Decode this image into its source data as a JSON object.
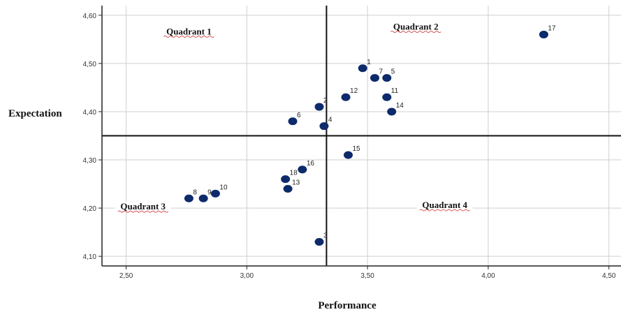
{
  "chart_data": {
    "type": "scatter",
    "title": "",
    "xlabel": "Performance",
    "ylabel": "Expectation",
    "xlim": [
      2.4,
      4.55
    ],
    "ylim": [
      4.08,
      4.62
    ],
    "xticks": [
      {
        "value": 2.5,
        "label": "2,50"
      },
      {
        "value": 3.0,
        "label": "3,00"
      },
      {
        "value": 3.5,
        "label": "3,50"
      },
      {
        "value": 4.0,
        "label": "4,00"
      },
      {
        "value": 4.5,
        "label": "4,50"
      }
    ],
    "yticks": [
      {
        "value": 4.1,
        "label": "4,10"
      },
      {
        "value": 4.2,
        "label": "4,20"
      },
      {
        "value": 4.3,
        "label": "4,30"
      },
      {
        "value": 4.4,
        "label": "4,40"
      },
      {
        "value": 4.5,
        "label": "4,50"
      },
      {
        "value": 4.6,
        "label": "4,60"
      }
    ],
    "grid": true,
    "point_color": "#0d2a6b",
    "divider": {
      "x": 3.33,
      "y": 4.35
    },
    "quadrants": [
      {
        "label": "Quadrant 1",
        "x": 2.76,
        "y": 4.56
      },
      {
        "label": "Quadrant 2",
        "x": 3.7,
        "y": 4.57
      },
      {
        "label": "Quadrant 3",
        "x": 2.57,
        "y": 4.197
      },
      {
        "label": "Quadrant 4",
        "x": 3.82,
        "y": 4.2
      }
    ],
    "points": [
      {
        "label": "1",
        "x": 3.48,
        "y": 4.49
      },
      {
        "label": "2",
        "x": 3.3,
        "y": 4.41
      },
      {
        "label": "3",
        "x": 3.3,
        "y": 4.13
      },
      {
        "label": "4",
        "x": 3.32,
        "y": 4.37
      },
      {
        "label": "5",
        "x": 3.58,
        "y": 4.47
      },
      {
        "label": "6",
        "x": 3.19,
        "y": 4.38
      },
      {
        "label": "7",
        "x": 3.53,
        "y": 4.47
      },
      {
        "label": "8",
        "x": 2.76,
        "y": 4.22
      },
      {
        "label": "9",
        "x": 2.82,
        "y": 4.22
      },
      {
        "label": "10",
        "x": 2.87,
        "y": 4.23
      },
      {
        "label": "11",
        "x": 3.58,
        "y": 4.43
      },
      {
        "label": "12",
        "x": 3.41,
        "y": 4.43
      },
      {
        "label": "13",
        "x": 3.17,
        "y": 4.24
      },
      {
        "label": "14",
        "x": 3.6,
        "y": 4.4
      },
      {
        "label": "15",
        "x": 3.42,
        "y": 4.31
      },
      {
        "label": "16",
        "x": 3.23,
        "y": 4.28
      },
      {
        "label": "17",
        "x": 4.23,
        "y": 4.56
      },
      {
        "label": "18",
        "x": 3.16,
        "y": 4.26
      }
    ]
  }
}
